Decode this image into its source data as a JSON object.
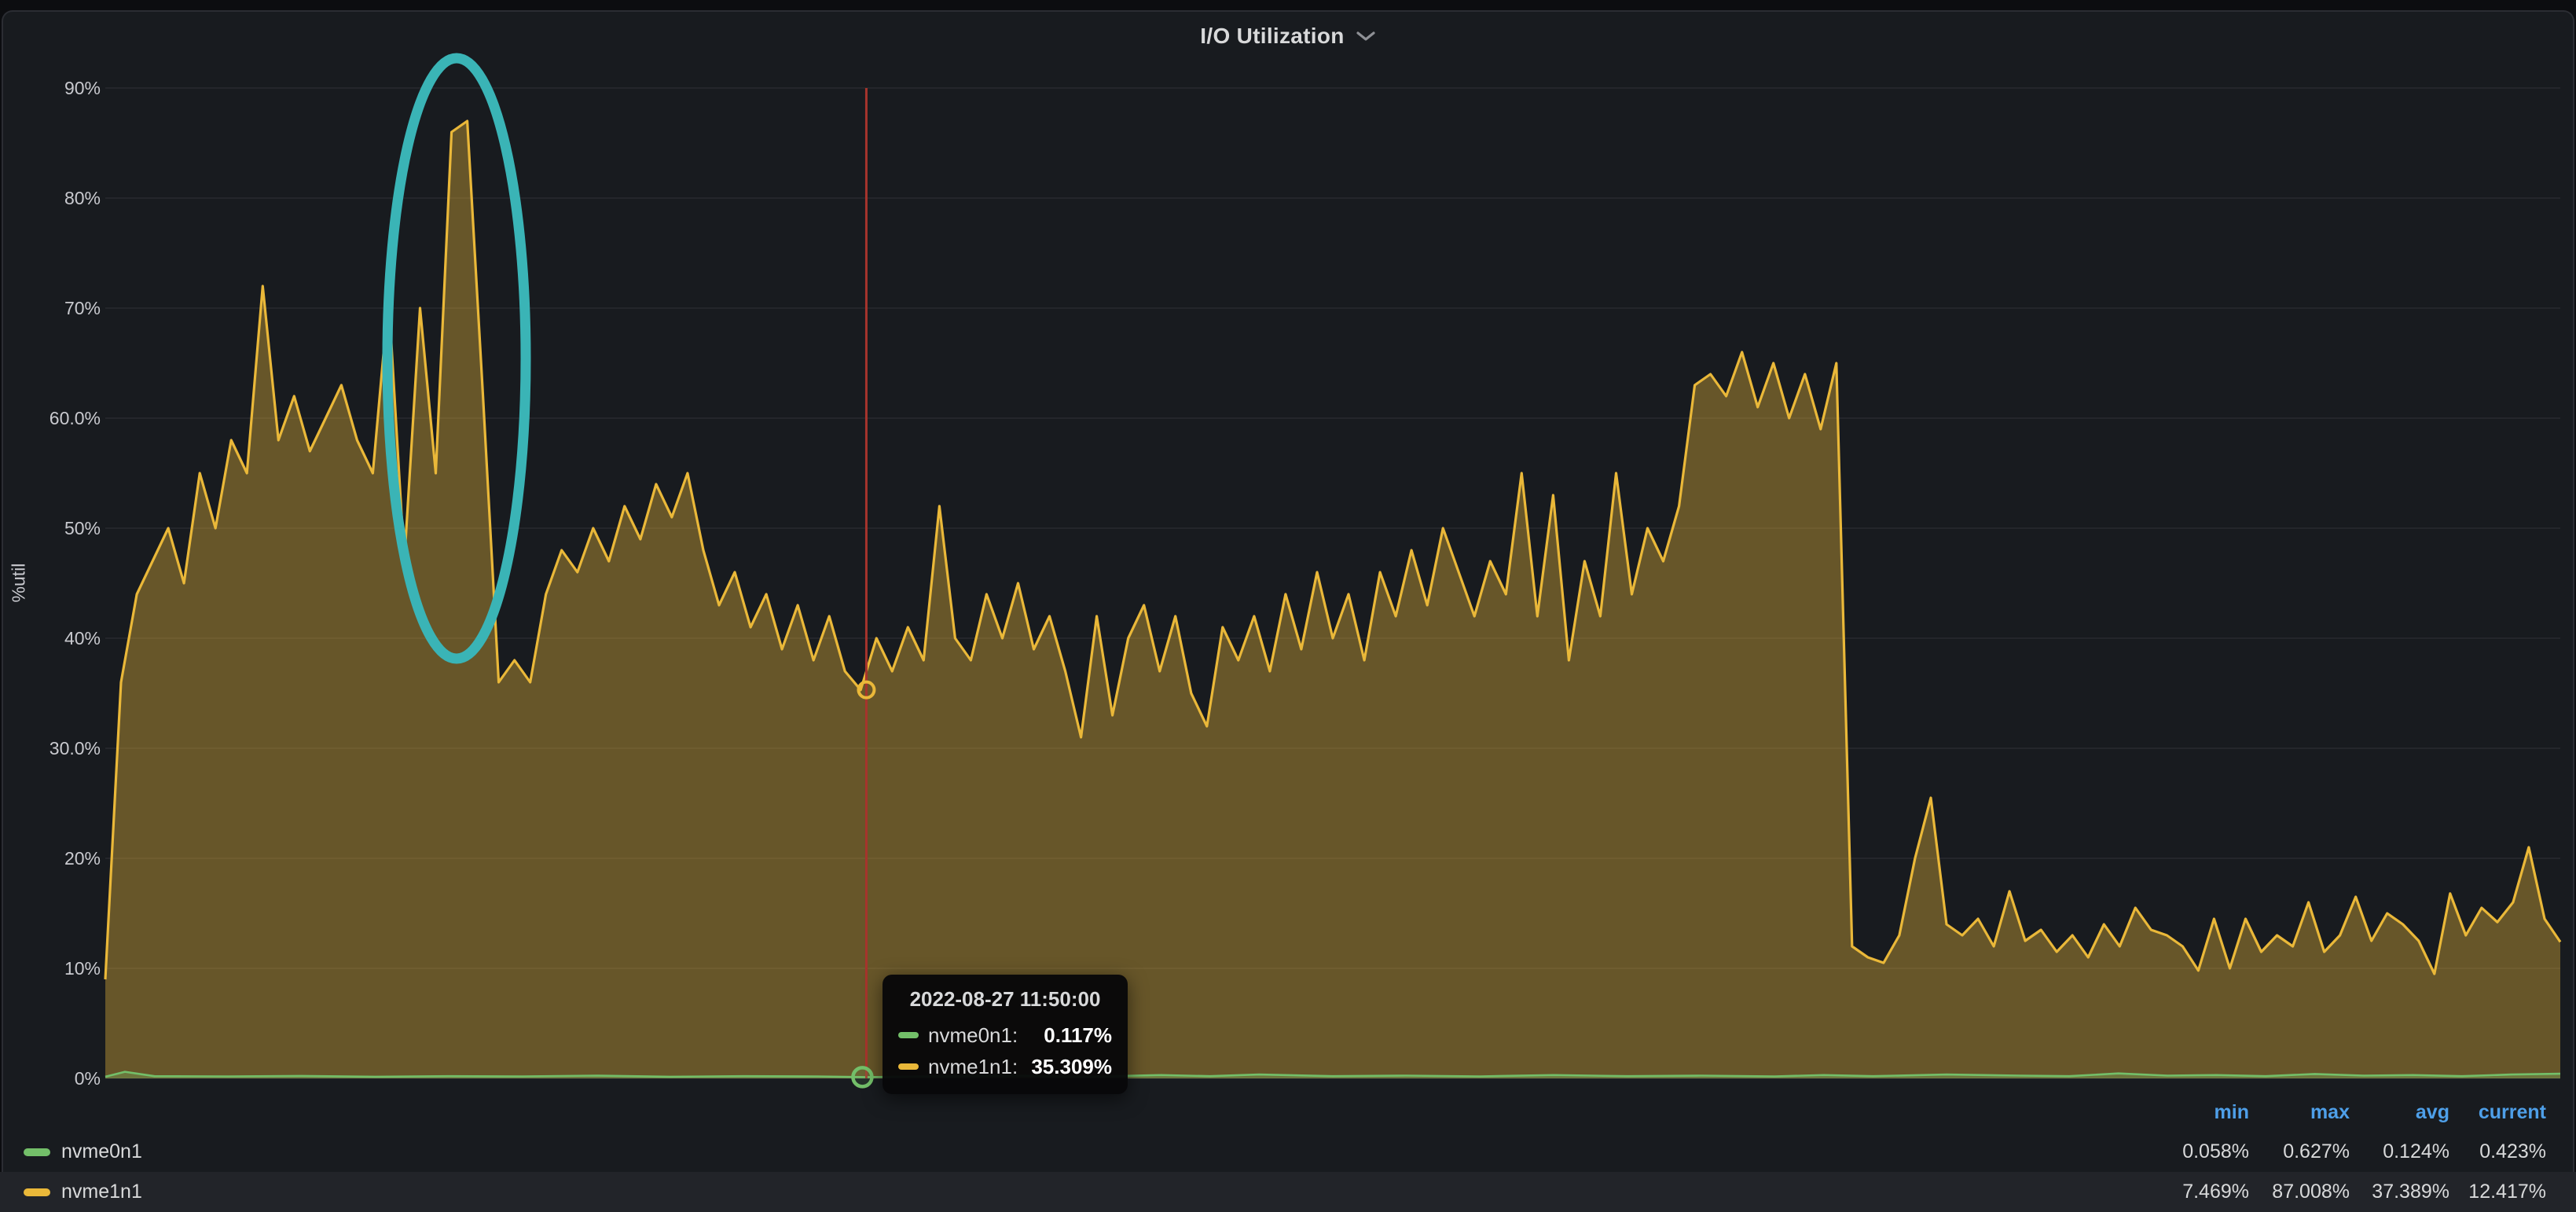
{
  "panel": {
    "title": "I/O Utilization",
    "bg": "#181b1f",
    "page_bg": "#0c0d10",
    "border_color": "#2b2d33",
    "chevron_color": "#8e9095"
  },
  "chart_data": {
    "type": "area",
    "title": "I/O Utilization",
    "ylabel": "%util",
    "ylim": [
      0,
      90
    ],
    "y_tick_labels": [
      "90%",
      "80%",
      "70%",
      "60.0%",
      "50%",
      "40%",
      "30.0%",
      "20%",
      "10%",
      "0%"
    ],
    "x_axis_labels_visible": false,
    "grid": true,
    "grid_color": "#24262b",
    "legend_position": "bottom-table",
    "series": [
      {
        "name": "nvme0n1",
        "color": "#73BF69",
        "fill_opacity": 0.3,
        "points_xy": [
          [
            0,
            0.15
          ],
          [
            0.008,
            0.6
          ],
          [
            0.02,
            0.2
          ],
          [
            0.05,
            0.18
          ],
          [
            0.08,
            0.22
          ],
          [
            0.11,
            0.15
          ],
          [
            0.14,
            0.2
          ],
          [
            0.17,
            0.18
          ],
          [
            0.2,
            0.25
          ],
          [
            0.23,
            0.15
          ],
          [
            0.26,
            0.2
          ],
          [
            0.29,
            0.18
          ],
          [
            0.31,
            0.117
          ],
          [
            0.34,
            0.2
          ],
          [
            0.37,
            0.25
          ],
          [
            0.4,
            0.15
          ],
          [
            0.43,
            0.3
          ],
          [
            0.45,
            0.2
          ],
          [
            0.47,
            0.35
          ],
          [
            0.5,
            0.2
          ],
          [
            0.53,
            0.25
          ],
          [
            0.56,
            0.18
          ],
          [
            0.59,
            0.3
          ],
          [
            0.62,
            0.2
          ],
          [
            0.65,
            0.25
          ],
          [
            0.68,
            0.18
          ],
          [
            0.7,
            0.3
          ],
          [
            0.72,
            0.2
          ],
          [
            0.75,
            0.35
          ],
          [
            0.78,
            0.25
          ],
          [
            0.8,
            0.2
          ],
          [
            0.82,
            0.45
          ],
          [
            0.84,
            0.25
          ],
          [
            0.86,
            0.3
          ],
          [
            0.88,
            0.2
          ],
          [
            0.9,
            0.4
          ],
          [
            0.92,
            0.25
          ],
          [
            0.94,
            0.3
          ],
          [
            0.96,
            0.2
          ],
          [
            0.98,
            0.35
          ],
          [
            1,
            0.423
          ]
        ],
        "stats": {
          "min": "0.058%",
          "max": "0.627%",
          "avg": "0.124%",
          "current": "0.423%"
        }
      },
      {
        "name": "nvme1n1",
        "color": "#EAB839",
        "fill_opacity": 0.38,
        "values": [
          9,
          36,
          44,
          47,
          50,
          45,
          55,
          50,
          58,
          55,
          72,
          58,
          62,
          57,
          60,
          63,
          58,
          55,
          71,
          47,
          70,
          55,
          86,
          87,
          62,
          36,
          38,
          36,
          44,
          48,
          46,
          50,
          47,
          52,
          49,
          54,
          51,
          55,
          48,
          43,
          46,
          41,
          44,
          39,
          43,
          38,
          42,
          37,
          35.3,
          40,
          37,
          41,
          38,
          52,
          40,
          38,
          44,
          40,
          45,
          39,
          42,
          37,
          31,
          42,
          33,
          40,
          43,
          37,
          42,
          35,
          32,
          41,
          38,
          42,
          37,
          44,
          39,
          46,
          40,
          44,
          38,
          46,
          42,
          48,
          43,
          50,
          46,
          42,
          47,
          44,
          55,
          42,
          53,
          38,
          47,
          42,
          55,
          44,
          50,
          47,
          52,
          63,
          64,
          62,
          66,
          61,
          65,
          60,
          64,
          59,
          65,
          12,
          11,
          10.5,
          13,
          20,
          25.5,
          14,
          13,
          14.5,
          12,
          17,
          12.5,
          13.5,
          11.5,
          13,
          11,
          14,
          12,
          15.5,
          13.5,
          13,
          12,
          9.8,
          14.5,
          10,
          14.5,
          11.5,
          13,
          12,
          16,
          11.5,
          13,
          16.5,
          12.5,
          15,
          14,
          12.5,
          9.5,
          16.8,
          13,
          15.5,
          14.2,
          16,
          21,
          14.5,
          12.4
        ],
        "stats": {
          "min": "7.469%",
          "max": "87.008%",
          "avg": "37.389%",
          "current": "12.417%"
        }
      }
    ],
    "cursor": {
      "time": "2022-08-27 11:50:00",
      "x_fraction": 0.31,
      "line_color": "#a6342c",
      "readings": [
        {
          "series": "nvme0n1",
          "value": 0.117
        },
        {
          "series": "nvme1n1",
          "value": 35.309
        }
      ]
    },
    "annotation_circle": {
      "color": "#3ab4b6",
      "cx": 581,
      "cy": 456,
      "rx": 88,
      "ry": 382,
      "stroke_width": 13
    }
  },
  "tooltip": {
    "title": "2022-08-27 11:50:00",
    "rows": [
      {
        "label": "nvme0n1:",
        "value": "0.117%",
        "color": "#73BF69"
      },
      {
        "label": "nvme1n1:",
        "value": "35.309%",
        "color": "#EAB839"
      }
    ]
  },
  "legend": {
    "headers": [
      "min",
      "max",
      "avg",
      "current"
    ],
    "header_color": "#4e9fe8",
    "rows": [
      {
        "name": "nvme0n1",
        "color": "#73BF69",
        "min": "0.058%",
        "max": "0.627%",
        "avg": "0.124%",
        "current": "0.423%",
        "highlighted": false
      },
      {
        "name": "nvme1n1",
        "color": "#EAB839",
        "min": "7.469%",
        "max": "87.008%",
        "avg": "37.389%",
        "current": "12.417%",
        "highlighted": true
      }
    ]
  }
}
